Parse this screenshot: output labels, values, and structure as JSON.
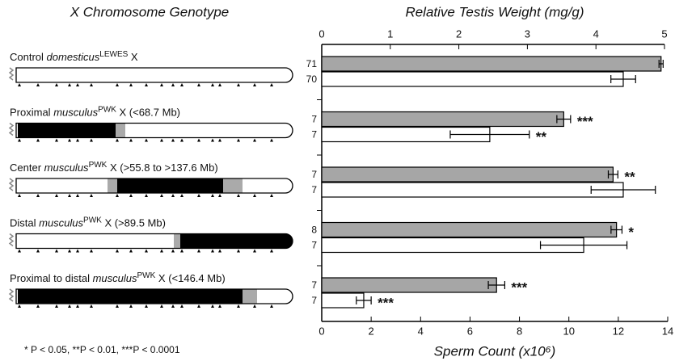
{
  "chart_data": {
    "type": "bar",
    "left_title": "X Chromosome Genotype",
    "x_label": "Relative Testis Weight (mg/g)",
    "x2_label": "Sperm Count (x10⁶)",
    "footnote": "* P < 0.05, **P < 0.01, ***P < 0.0001",
    "categories": [
      {
        "text": "Control ",
        "italic": "domesticus",
        "sup": "LEWES",
        "suffix": " X"
      },
      {
        "text": "Proximal ",
        "italic": "musculus",
        "sup": "PWK",
        "suffix": " X (<68.7 Mb)"
      },
      {
        "text": "Center ",
        "italic": "musculus",
        "sup": "PWK",
        "suffix": " X (>55.8 to >137.6 Mb)"
      },
      {
        "text": "Distal ",
        "italic": "musculus",
        "sup": "PWK",
        "suffix": " X (>89.5 Mb)"
      },
      {
        "text": "Proximal to distal ",
        "italic": "musculus",
        "sup": "PWK",
        "suffix": " X (<146.4 Mb)"
      }
    ],
    "xlim": [
      0,
      5
    ],
    "xticks": [
      0,
      1,
      2,
      3,
      4,
      5
    ],
    "x2lim": [
      0,
      14
    ],
    "x2ticks": [
      0,
      2,
      4,
      6,
      8,
      10,
      12,
      14
    ],
    "series": [
      {
        "axis": "x",
        "color": "#a6a6a6",
        "values": [
          4.95,
          3.53,
          4.25,
          4.3,
          2.55
        ],
        "errors": [
          0.03,
          0.1,
          0.07,
          0.08,
          0.12
        ],
        "n": [
          "71",
          "7",
          "7",
          "8",
          "7"
        ],
        "stars": [
          null,
          "***",
          "**",
          "*",
          "***"
        ]
      },
      {
        "axis": "x2",
        "color": "#ffffff",
        "values": [
          12.2,
          6.8,
          12.2,
          10.6,
          1.7
        ],
        "errors": [
          0.5,
          1.6,
          1.3,
          1.75,
          0.3
        ],
        "n": [
          "70",
          "7",
          "7",
          "7",
          "7"
        ],
        "stars": [
          null,
          "**",
          null,
          null,
          "***"
        ]
      }
    ]
  }
}
